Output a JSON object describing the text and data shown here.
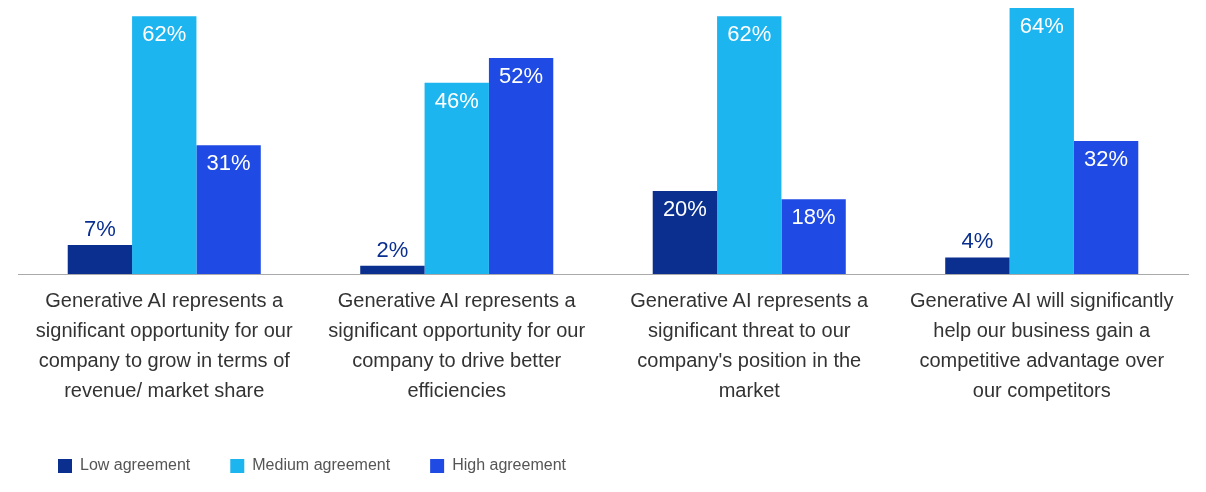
{
  "chart_data": {
    "type": "bar",
    "categories": [
      "Generative AI represents a significant opportunity for our company to grow in terms of revenue/ market share",
      "Generative AI represents a significant opportunity for our company to drive better efficiencies",
      "Generative AI represents a significant threat to our company's position in the market",
      "Generative AI will significantly help our business gain a competitive advantage over our competitors"
    ],
    "series": [
      {
        "name": "Low agreement",
        "color": "#0a2f8f",
        "values": [
          7,
          2,
          20,
          4
        ],
        "value_labels": [
          "7%",
          "2%",
          "20%",
          "4%"
        ]
      },
      {
        "name": "Medium agreement",
        "color": "#1db5ef",
        "values": [
          62,
          46,
          62,
          64
        ],
        "value_labels": [
          "62%",
          "46%",
          "62%",
          "64%"
        ]
      },
      {
        "name": "High agreement",
        "color": "#1f4ae3",
        "values": [
          31,
          52,
          18,
          32
        ],
        "value_labels": [
          "31%",
          "52%",
          "18%",
          "32%"
        ]
      }
    ],
    "ylim": [
      0,
      64
    ],
    "tick_labels": "x",
    "grid": false,
    "legend": "bottom left"
  }
}
